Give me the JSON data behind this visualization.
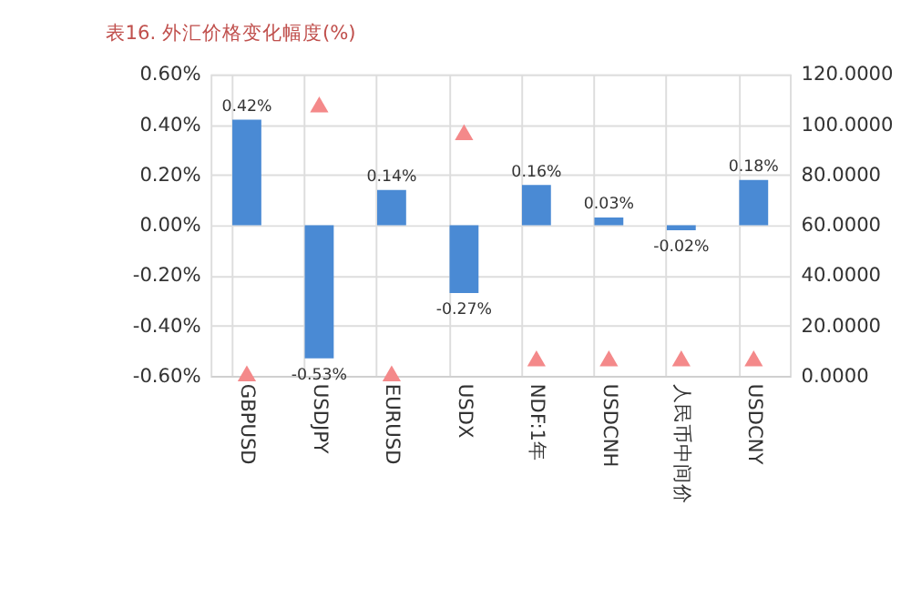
{
  "chart_data": {
    "type": "bar",
    "title": "表16. 外汇价格变化幅度(%)",
    "categories": [
      "GBPUSD",
      "USDJPY",
      "EURUSD",
      "USDX",
      "NDF:1年",
      "USDCNH",
      "人民币中间价",
      "USDCNY"
    ],
    "series": [
      {
        "color": "#4a8ad4",
        "values": [
          0.42,
          -0.53,
          0.14,
          -0.27,
          0.16,
          0.03,
          -0.02,
          0.18
        ],
        "value_labels": [
          "0.42%",
          "-0.53%",
          "0.14%",
          "-0.27%",
          "0.16%",
          "0.03%",
          "-0.02%",
          "0.18%"
        ]
      },
      {
        "type": "scatter",
        "axis": "y2",
        "marker": "triangle",
        "color": "#f4898a",
        "values": [
          1,
          108,
          1,
          97,
          7,
          7,
          7,
          7
        ]
      }
    ],
    "ylim": [
      -0.6,
      0.6
    ],
    "yticks": [
      {
        "value": -0.6,
        "label": "-0.60%"
      },
      {
        "value": -0.4,
        "label": "-0.40%"
      },
      {
        "value": -0.2,
        "label": "-0.20%"
      },
      {
        "value": 0,
        "label": "0.00%"
      },
      {
        "value": 0.2,
        "label": "0.20%"
      },
      {
        "value": 0.4,
        "label": "0.40%"
      },
      {
        "value": 0.6,
        "label": "0.60%"
      }
    ],
    "y2lim": [
      0,
      120
    ],
    "y2ticks": [
      {
        "value": 0,
        "label": "0.0000"
      },
      {
        "value": 20,
        "label": "20.0000"
      },
      {
        "value": 40,
        "label": "40.0000"
      },
      {
        "value": 60,
        "label": "60.0000"
      },
      {
        "value": 80,
        "label": "80.0000"
      },
      {
        "value": 100,
        "label": "100.0000"
      },
      {
        "value": 120,
        "label": "120.0000"
      }
    ],
    "grid": true
  }
}
